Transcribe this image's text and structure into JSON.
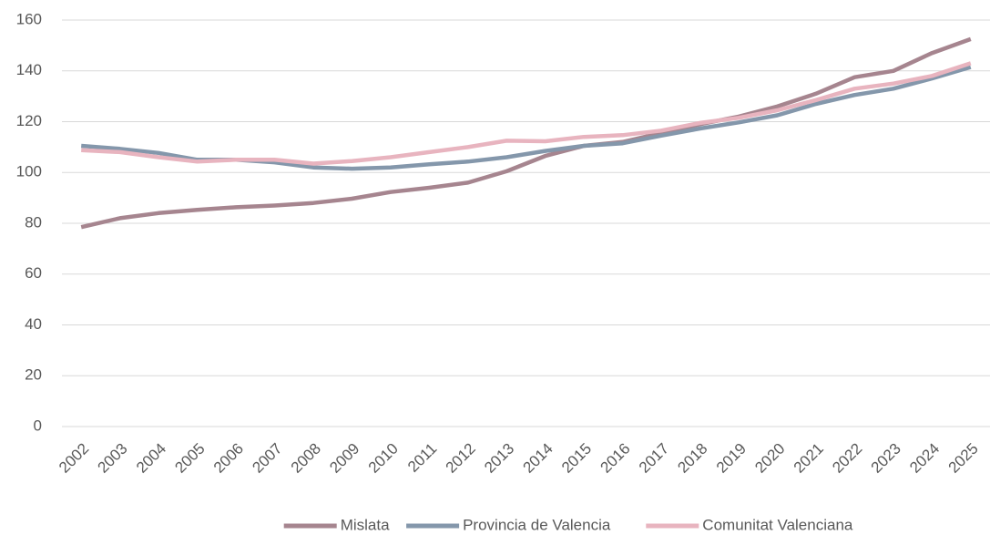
{
  "chart_data": {
    "type": "line",
    "categories": [
      "2002",
      "2003",
      "2004",
      "2005",
      "2006",
      "2007",
      "2008",
      "2009",
      "2010",
      "2011",
      "2012",
      "2013",
      "2014",
      "2015",
      "2016",
      "2017",
      "2018",
      "2019",
      "2020",
      "2021",
      "2022",
      "2023",
      "2024",
      "2025"
    ],
    "series": [
      {
        "name": "Mislata",
        "color": "#a6858f",
        "values": [
          78.5,
          82,
          84,
          85.3,
          86.3,
          87,
          88,
          89.7,
          92.3,
          94,
          96,
          100.5,
          106.5,
          110.5,
          112,
          115.5,
          119,
          122,
          126,
          131,
          137.5,
          140,
          147,
          152.5
        ]
      },
      {
        "name": "Provincia de Valencia",
        "color": "#8497ab",
        "values": [
          110.5,
          109.3,
          107.7,
          105,
          105,
          104,
          102,
          101.5,
          102,
          103.2,
          104.3,
          106,
          108.5,
          110.5,
          111.5,
          114.5,
          117.3,
          119.7,
          122.5,
          127,
          130.5,
          133,
          137,
          141.5
        ]
      },
      {
        "name": "Comunitat Valenciana",
        "color": "#e8b4bf",
        "values": [
          108.8,
          108,
          106,
          104.3,
          105,
          105,
          103.5,
          104.5,
          106,
          108,
          110,
          112.5,
          112.3,
          114,
          114.7,
          116.5,
          119.5,
          121.5,
          124.5,
          128.5,
          133,
          135,
          138,
          143
        ]
      }
    ],
    "ylim": [
      0,
      160
    ],
    "yticks": [
      0,
      20,
      40,
      60,
      80,
      100,
      120,
      140,
      160
    ],
    "grid": true,
    "legend": "bottom"
  }
}
